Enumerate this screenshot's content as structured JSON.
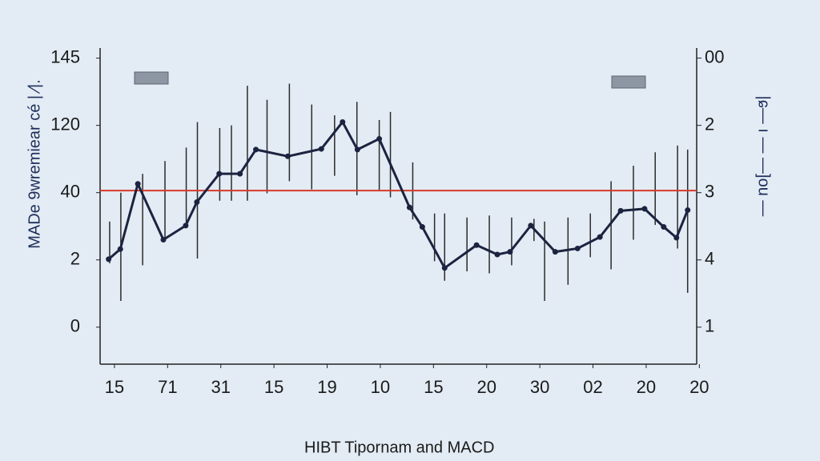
{
  "chart_data": {
    "type": "line",
    "title": "HIBT Tipornam and MACD",
    "ylabel": "MADe 9wremiear cé | ⁄|.",
    "y2label": "|ɕ— ı — —]ou —",
    "xlim": [
      -0.27,
      10.95
    ],
    "xticks": [
      {
        "value": 0,
        "label": "15"
      },
      {
        "value": 1,
        "label": "71"
      },
      {
        "value": 2,
        "label": "31"
      },
      {
        "value": 3,
        "label": "15"
      },
      {
        "value": 4,
        "label": "19"
      },
      {
        "value": 5,
        "label": "10"
      },
      {
        "value": 6,
        "label": "15"
      },
      {
        "value": 7,
        "label": "20"
      },
      {
        "value": 8,
        "label": "30"
      },
      {
        "value": 9,
        "label": "02"
      },
      {
        "value": 10,
        "label": "20"
      },
      {
        "value": 11,
        "label": "20"
      }
    ],
    "ylim": [
      -0.55,
      4.15
    ],
    "yticks": [
      0,
      {
        "value": 1,
        "label": "2"
      },
      {
        "value": 2,
        "label": "40"
      },
      {
        "value": 3,
        "label": "120"
      },
      {
        "value": 4,
        "label": "145"
      }
    ],
    "y2lim": [
      -0.55,
      4.15
    ],
    "y2ticks": [
      {
        "value": 0,
        "label": "1"
      },
      {
        "value": 1,
        "label": "4"
      },
      {
        "value": 2,
        "label": "3"
      },
      {
        "value": 3,
        "label": "2"
      },
      {
        "value": 4,
        "label": "00"
      }
    ],
    "series": [
      {
        "color": "#1c2340",
        "x": [
          -0.11,
          0.11,
          0.44,
          0.92,
          1.34,
          1.55,
          1.97,
          2.36,
          2.66,
          3.26,
          3.89,
          4.29,
          4.57,
          4.98,
          5.55,
          5.79,
          6.21,
          6.81,
          7.2,
          7.44,
          7.83,
          8.29,
          8.71,
          9.13,
          9.52,
          9.97,
          10.33,
          10.57,
          10.78
        ],
        "values": [
          1.01,
          1.16,
          2.13,
          1.3,
          1.51,
          1.86,
          2.28,
          2.28,
          2.64,
          2.54,
          2.65,
          3.05,
          2.64,
          2.8,
          1.78,
          1.49,
          0.88,
          1.22,
          1.08,
          1.12,
          1.51,
          1.12,
          1.17,
          1.34,
          1.73,
          1.76,
          1.49,
          1.33,
          1.74
        ]
      }
    ],
    "errorbars": {
      "color": "#2a2a2a",
      "x": [
        -0.09,
        0.12,
        0.53,
        0.95,
        1.35,
        1.56,
        1.98,
        2.2,
        2.5,
        2.87,
        3.29,
        3.71,
        4.14,
        4.56,
        4.98,
        5.19,
        5.61,
        6.02,
        6.21,
        6.63,
        7.05,
        7.47,
        7.89,
        8.09,
        8.53,
        8.95,
        9.34,
        9.76,
        10.17,
        10.59,
        10.78
      ],
      "high": [
        1.57,
        2.0,
        2.28,
        2.47,
        2.67,
        3.05,
        2.96,
        3.0,
        3.59,
        3.38,
        3.62,
        3.31,
        3.15,
        3.35,
        3.08,
        3.2,
        2.45,
        1.69,
        1.69,
        1.63,
        1.66,
        1.63,
        1.61,
        1.57,
        1.63,
        1.69,
        2.17,
        2.4,
        2.6,
        2.7,
        2.64
      ],
      "low": [
        0.95,
        0.39,
        0.92,
        1.28,
        1.52,
        1.02,
        1.88,
        1.88,
        1.88,
        1.99,
        2.17,
        2.05,
        2.25,
        1.96,
        2.04,
        1.93,
        1.6,
        0.98,
        0.69,
        0.83,
        0.8,
        0.92,
        1.28,
        0.39,
        0.63,
        1.04,
        0.86,
        1.3,
        1.52,
        1.17,
        0.51
      ]
    },
    "hline": {
      "value": 2.03,
      "color": "#d63a2a"
    }
  }
}
